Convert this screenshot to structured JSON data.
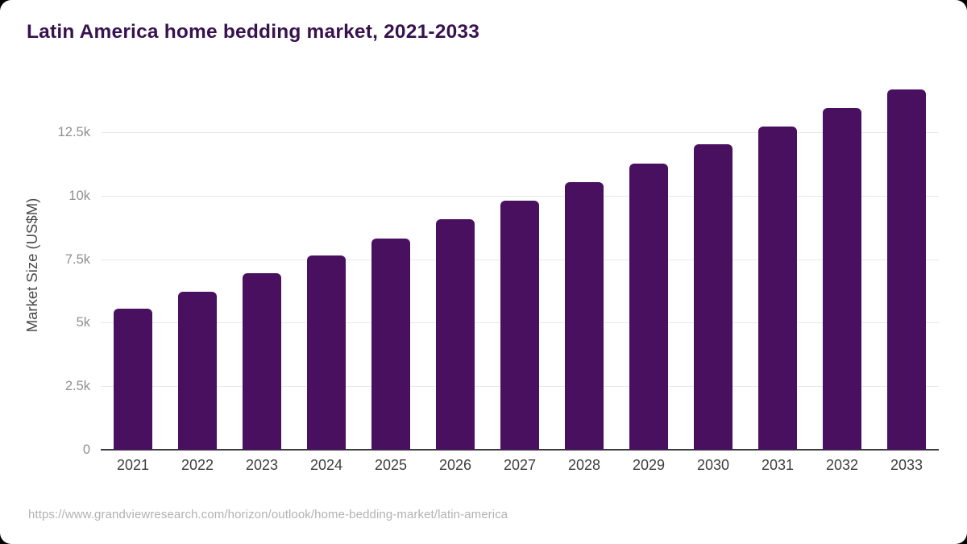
{
  "page": {
    "outer_background": "#000000",
    "card_background": "#ffffff"
  },
  "header": {
    "title": "Latin America home bedding market, 2021-2033",
    "title_color": "#38124f"
  },
  "footer": {
    "source_url": "https://www.grandviewresearch.com/horizon/outlook/home-bedding-market/latin-america"
  },
  "chart_data": {
    "type": "bar",
    "title": "Latin America home bedding market, 2021-2033",
    "xlabel": "",
    "ylabel": "Market Size (US$M)",
    "categories": [
      "2021",
      "2022",
      "2023",
      "2024",
      "2025",
      "2026",
      "2027",
      "2028",
      "2029",
      "2030",
      "2031",
      "2032",
      "2033"
    ],
    "values": [
      5550,
      6210,
      6940,
      7640,
      8320,
      9060,
      9790,
      10530,
      11250,
      12020,
      12720,
      13440,
      14170
    ],
    "unit": "US$M",
    "ylim": [
      0,
      14530
    ],
    "y_ticks": [
      {
        "label": "0",
        "value": 0
      },
      {
        "label": "2.5k",
        "value": 2500
      },
      {
        "label": "5k",
        "value": 5000
      },
      {
        "label": "7.5k",
        "value": 7500
      },
      {
        "label": "10k",
        "value": 10000
      },
      {
        "label": "12.5k",
        "value": 12500
      }
    ],
    "bar_color": "#4a1060",
    "grid": true,
    "legend": false
  }
}
